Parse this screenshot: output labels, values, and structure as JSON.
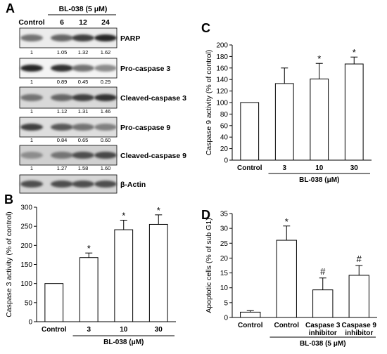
{
  "panel_a": {
    "letter": "A",
    "treatment_label": "BL-038 (5 μM)",
    "lanes": [
      "Control",
      "6",
      "12",
      "24"
    ],
    "blots": [
      {
        "name": "PARP",
        "quant": [
          "1",
          "1.05",
          "1.32",
          "1.62"
        ]
      },
      {
        "name": "Pro-caspase 3",
        "quant": [
          "1",
          "0.89",
          "0.45",
          "0.29"
        ]
      },
      {
        "name": "Cleaved-caspase 3",
        "quant": [
          "1",
          "1.12",
          "1.31",
          "1.46"
        ]
      },
      {
        "name": "Pro-caspase 9",
        "quant": [
          "1",
          "0.84",
          "0.65",
          "0.60"
        ]
      },
      {
        "name": "Cleaved-caspase 9",
        "quant": [
          "1",
          "1.27",
          "1.58",
          "1.60"
        ]
      },
      {
        "name": "β-Actin",
        "quant": []
      }
    ]
  },
  "chart_data": [
    {
      "panel": "B",
      "type": "bar",
      "ylabel": "Caspase 3 activity (% of control)",
      "xlabel": "BL-038 (μM)",
      "categories": [
        "Control",
        "3",
        "10",
        "30"
      ],
      "values": [
        100,
        168,
        241,
        255
      ],
      "errors": [
        0,
        12,
        25,
        25
      ],
      "annotations": [
        "",
        "*",
        "*",
        "*"
      ],
      "ylim": [
        0,
        300
      ],
      "yticks": [
        "0",
        "50",
        "100",
        "150",
        "200",
        "250",
        "300"
      ],
      "treated_from_index": 1
    },
    {
      "panel": "C",
      "type": "bar",
      "ylabel": "Caspase 9 activity (% of control)",
      "xlabel": "BL-038 (μM)",
      "categories": [
        "Control",
        "3",
        "10",
        "30"
      ],
      "values": [
        100,
        133,
        141,
        167
      ],
      "errors": [
        0,
        27,
        27,
        12
      ],
      "annotations": [
        "",
        "",
        "*",
        "*"
      ],
      "ylim": [
        0,
        200
      ],
      "yticks": [
        "0",
        "20",
        "40",
        "60",
        "80",
        "100",
        "120",
        "140",
        "160",
        "180",
        "200"
      ],
      "treated_from_index": 1
    },
    {
      "panel": "D",
      "type": "bar",
      "ylabel": "Apoptotic cells (% of sub G1)",
      "xlabel": "BL-038 (5 μM)",
      "categories": [
        "Control",
        "Control",
        "Caspase 3\ninhibitor",
        "Caspase 9\ninhibitor"
      ],
      "values": [
        1.8,
        26.0,
        9.3,
        14.2
      ],
      "errors": [
        0.5,
        4.8,
        4.0,
        3.3
      ],
      "annotations": [
        "",
        "*",
        "#",
        "#"
      ],
      "ylim": [
        0,
        35
      ],
      "yticks": [
        "0",
        "5",
        "10",
        "15",
        "20",
        "25",
        "30",
        "35"
      ],
      "treated_from_index": 1
    }
  ]
}
